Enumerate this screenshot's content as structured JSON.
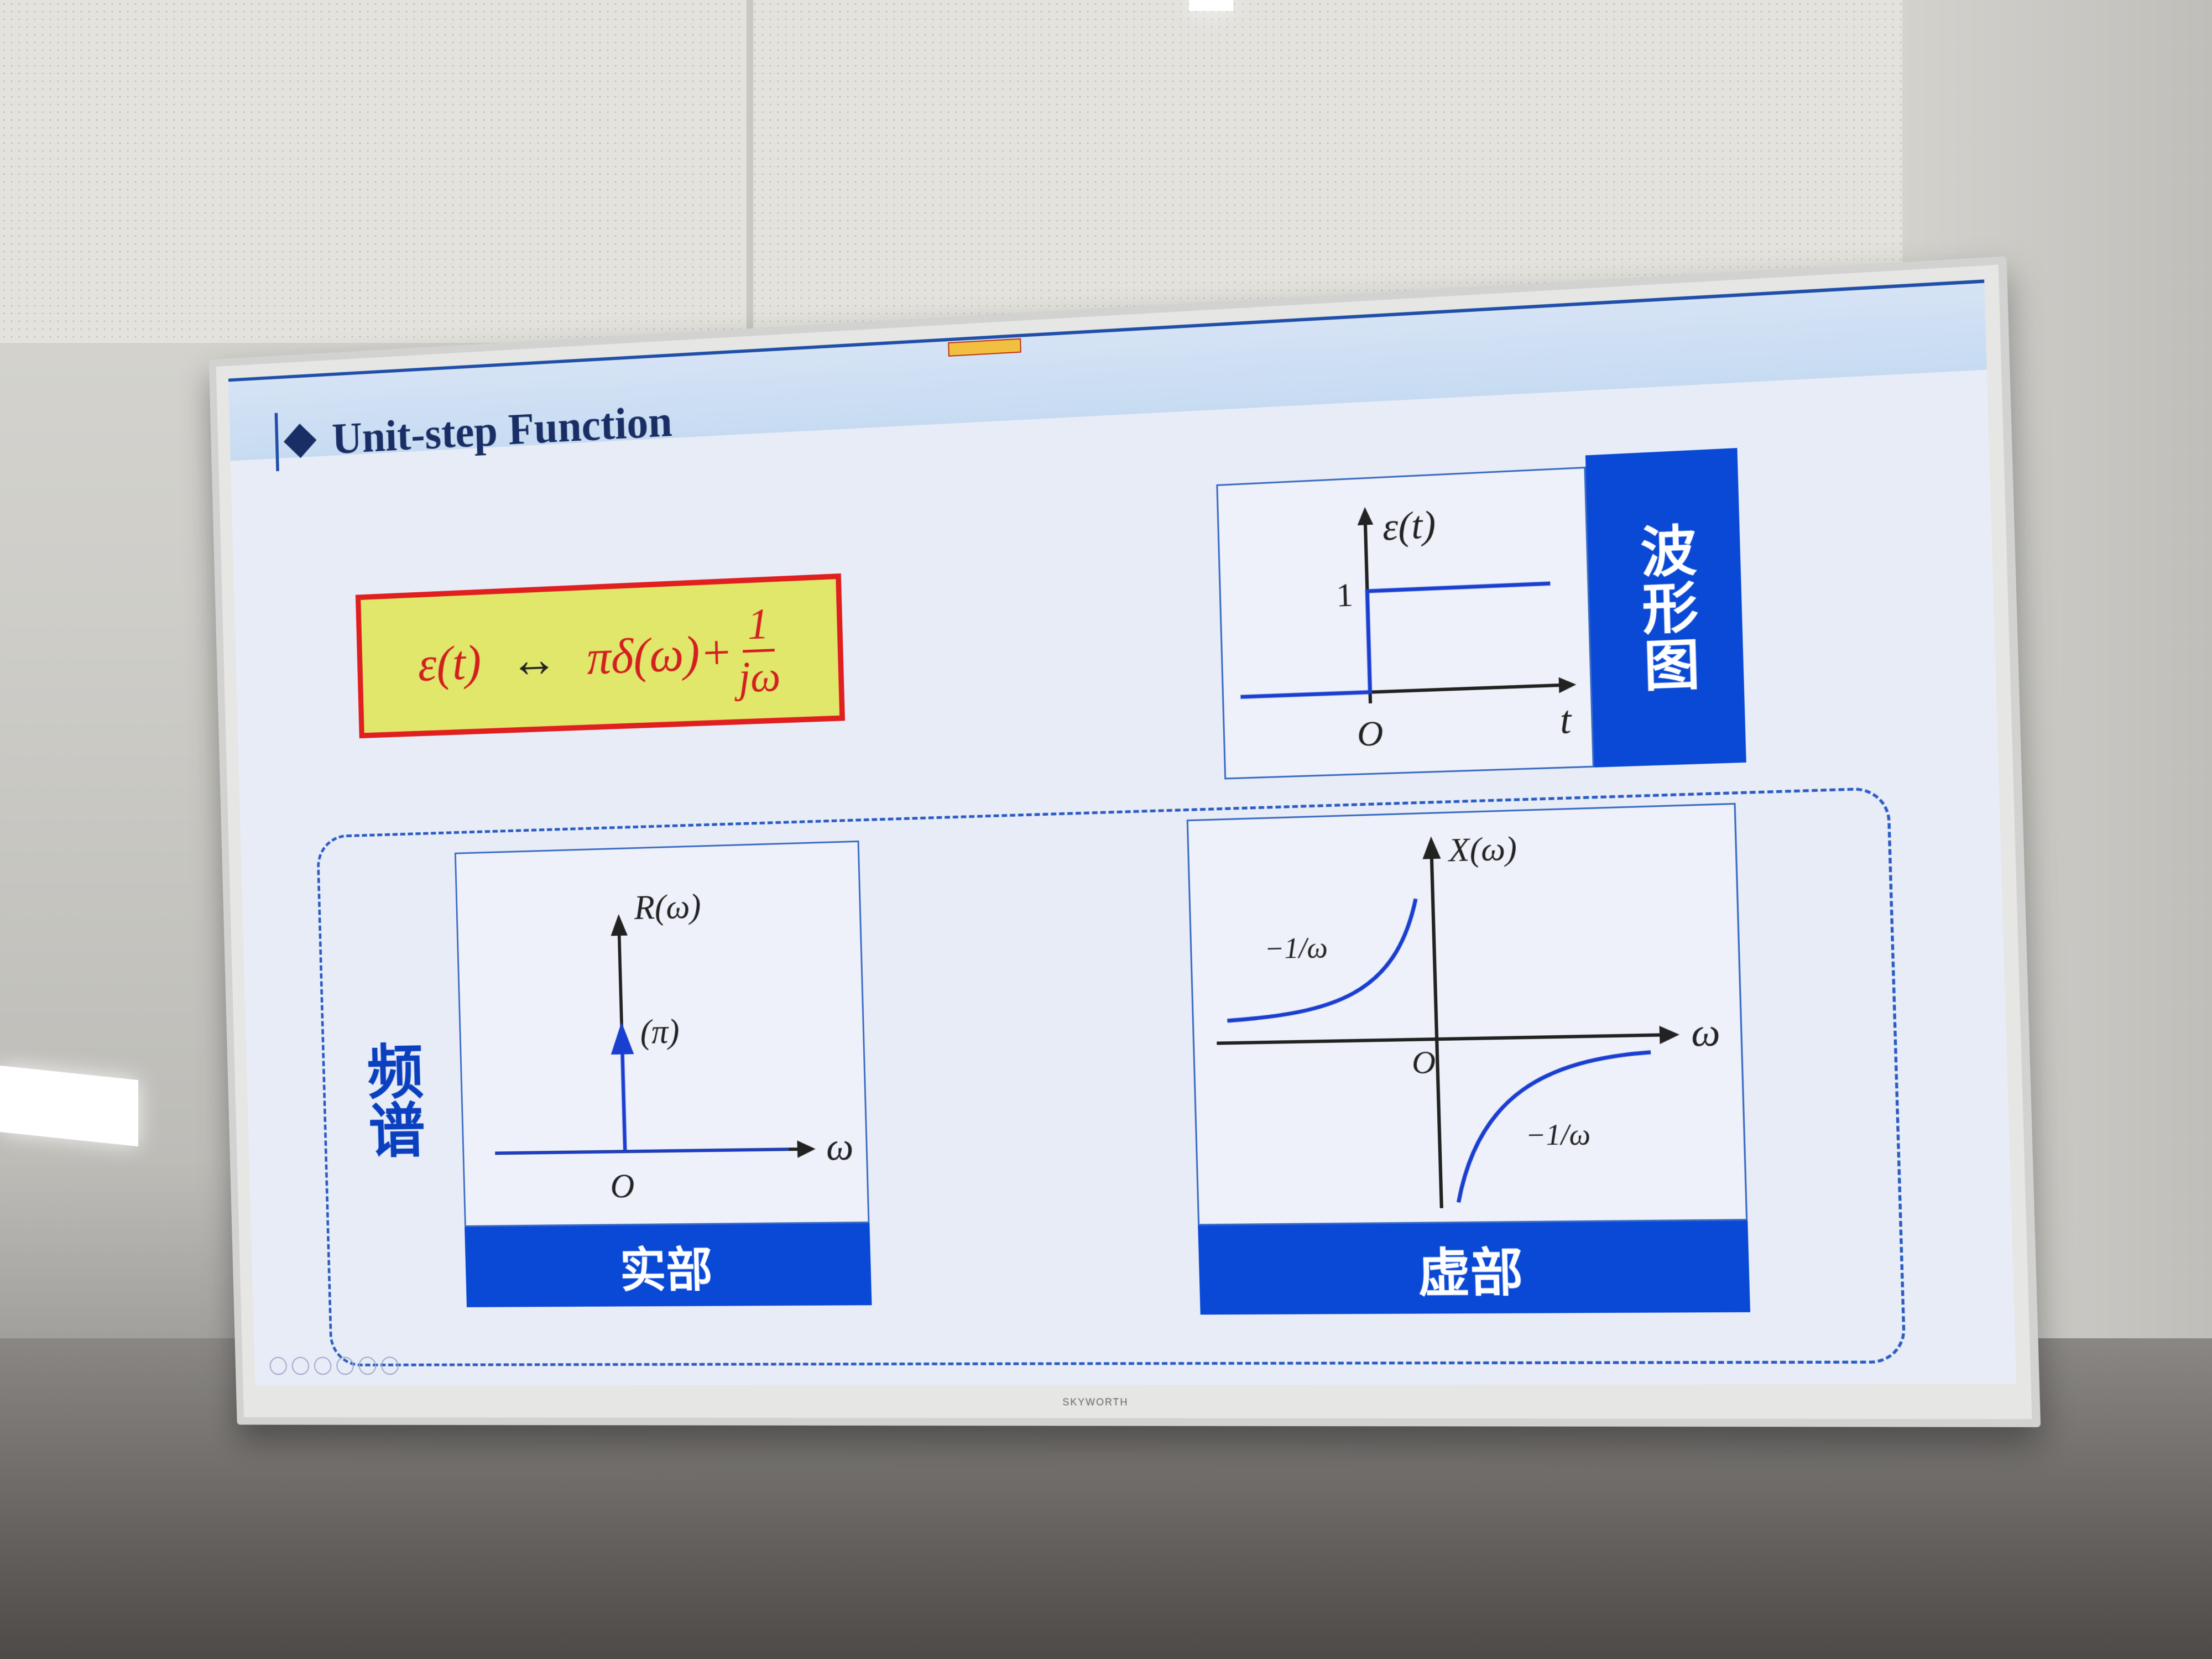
{
  "slide": {
    "title": "Unit-step Function",
    "formula": {
      "lhs": "ε(t)",
      "arrow": "↔",
      "rhs": "πδ(ω)+",
      "frac_num": "1",
      "frac_den": "jω"
    },
    "waveform": {
      "label": "波形图",
      "y_axis": "ε(t)",
      "x_axis": "t",
      "origin": "O",
      "level": "1"
    },
    "spectrum_label": "频谱",
    "real_part": {
      "label": "实部",
      "y_axis": "R(ω)",
      "x_axis": "ω",
      "origin": "O",
      "impulse": "(π)"
    },
    "imag_part": {
      "label": "虚部",
      "y_axis": "X(ω)",
      "x_axis": "ω",
      "origin": "O",
      "left_curve": "−1/ω",
      "right_curve": "−1/ω"
    }
  },
  "monitor": {
    "brand": "SKYWORTH"
  },
  "colors": {
    "accent_blue": "#0a49d6",
    "formula_bg": "#e1e76a",
    "formula_border": "#e02020",
    "formula_text": "#d21f1f"
  }
}
